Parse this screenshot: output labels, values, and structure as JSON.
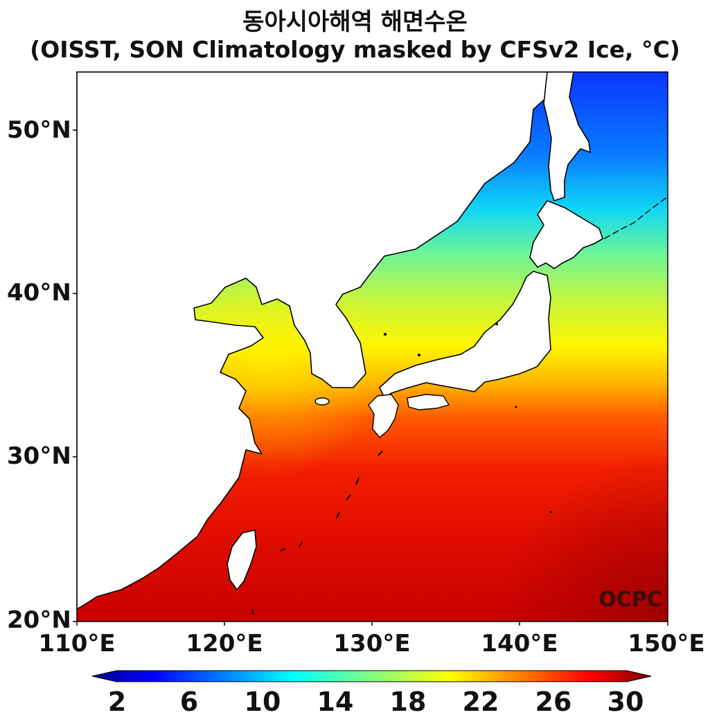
{
  "title_line1": "동아시아해역 해면수온",
  "title_line2": "(OISST, SON Climatology masked by CFSv2 Ice, °C)",
  "watermark": "OCPC",
  "axes": {
    "lon_range": [
      110,
      150
    ],
    "lat_range": [
      20,
      53.5
    ],
    "x_ticks": [
      "110°E",
      "120°E",
      "130°E",
      "140°E",
      "150°E"
    ],
    "y_ticks": [
      "50°N",
      "40°N",
      "30°N",
      "20°N"
    ]
  },
  "colorbar": {
    "range": [
      0,
      30
    ],
    "ticks": [
      "2",
      "6",
      "10",
      "14",
      "18",
      "22",
      "26",
      "30"
    ],
    "extend": "both",
    "colormap": "jet"
  },
  "colors": {
    "coastline": "#000000",
    "land": "#ffffff",
    "watermark": "#3a0d0d"
  }
}
